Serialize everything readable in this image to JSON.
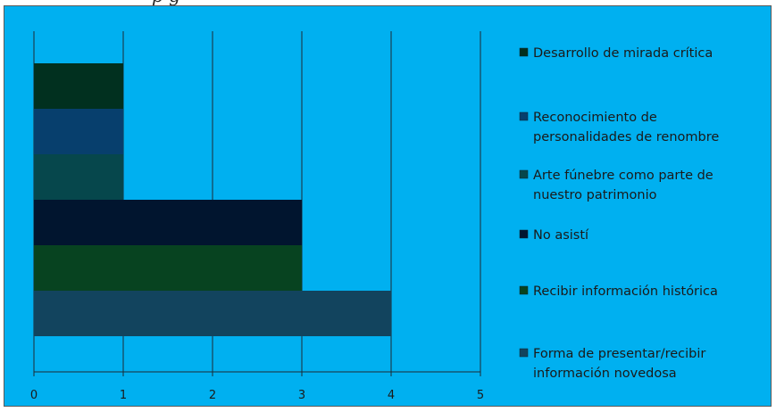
{
  "page": {
    "title_fragment": "p          g"
  },
  "chart_data": {
    "type": "bar",
    "orientation": "horizontal",
    "stacking": "none",
    "title": "",
    "xlabel": "",
    "ylabel": "",
    "xlim": [
      0,
      5
    ],
    "xticks": [
      "0",
      "1",
      "2",
      "3",
      "4",
      "5"
    ],
    "grid": "vertical-major",
    "legend_position": "right",
    "series": [
      {
        "name": "Forma de presentar/recibir información novedosa",
        "value": 4,
        "color": "#12445e"
      },
      {
        "name": "Recibir información histórica",
        "value": 3,
        "color": "#074320"
      },
      {
        "name": "No asistí",
        "value": 3,
        "color": "#01152f"
      },
      {
        "name": "Arte fúnebre como parte de nuestro patrimonio",
        "value": 1,
        "color": "#06474c"
      },
      {
        "name": "Reconocimiento de personalidades de renombre",
        "value": 1,
        "color": "#073f6d"
      },
      {
        "name": "Desarrollo de mirada crítica",
        "value": 1,
        "color": "#01301f"
      }
    ],
    "legend_lines": [
      [
        "Desarrollo de mirada crítica"
      ],
      [
        "Reconocimiento de",
        "personalidades de renombre"
      ],
      [
        "Arte fúnebre como parte de",
        "nuestro patrimonio"
      ],
      [
        "No asistí"
      ],
      [
        "Recibir información histórica"
      ],
      [
        "Forma de presentar/recibir",
        "información novedosa"
      ]
    ]
  }
}
